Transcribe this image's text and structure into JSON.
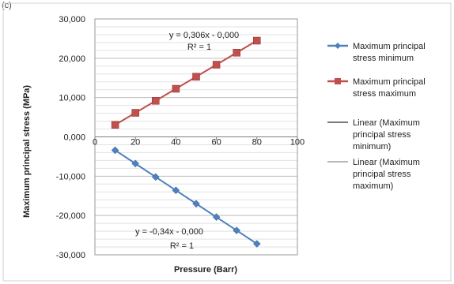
{
  "panel_label": "(c)",
  "chart_data": {
    "type": "line",
    "title": "",
    "xlabel": "Pressure (Barr)",
    "ylabel": "Maximum principal stress (MPa)",
    "xlim": [
      0,
      100
    ],
    "ylim": [
      -30,
      30
    ],
    "x_ticks": [
      0,
      20,
      40,
      60,
      80,
      100
    ],
    "y_ticks": [
      -30,
      -20,
      -10,
      0,
      10,
      20,
      30
    ],
    "x_tick_labels": [
      "0",
      "20",
      "40",
      "60",
      "80",
      "100"
    ],
    "y_tick_labels": [
      "-30,000",
      "-20,000",
      "-10,000",
      "0,000",
      "10,000",
      "20,000",
      "30,000"
    ],
    "grid": "horizontal",
    "legend_position": "right",
    "series": [
      {
        "name": "Maximum principal stress minimum",
        "marker": "diamond",
        "color": "#4F81BD",
        "x": [
          10,
          20,
          30,
          40,
          50,
          60,
          70,
          80
        ],
        "y": [
          -3.4,
          -6.8,
          -10.2,
          -13.6,
          -17.0,
          -20.4,
          -23.8,
          -27.2
        ]
      },
      {
        "name": "Maximum principal stress maximum",
        "marker": "square",
        "color": "#C0504D",
        "x": [
          10,
          20,
          30,
          40,
          50,
          60,
          70,
          80
        ],
        "y": [
          3.06,
          6.12,
          9.18,
          12.24,
          15.3,
          18.36,
          21.42,
          24.48
        ]
      }
    ],
    "trendlines": [
      {
        "name": "Linear (Maximum principal stress minimum)",
        "color": "#2B2B2B",
        "slope": -0.34,
        "intercept": 0,
        "x_range": [
          10,
          80
        ],
        "equation": "y = -0,34x - 0,000",
        "r2": "R² = 1"
      },
      {
        "name": "Linear (Maximum principal stress maximum)",
        "color": "#8C8C8C",
        "slope": 0.306,
        "intercept": 0,
        "x_range": [
          10,
          80
        ],
        "equation": "y = 0,306x - 0,000",
        "r2": "R² = 1"
      }
    ]
  }
}
